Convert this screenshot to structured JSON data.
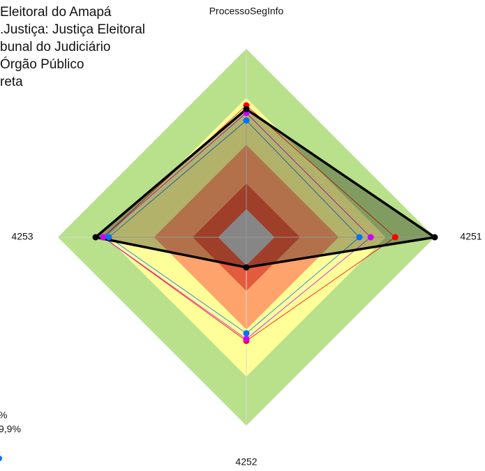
{
  "chart_data": {
    "type": "radar",
    "annotations": [
      "Eleitoral do Amapá",
      ".Justiça: Justiça Eleitoral",
      "bunal do Judiciário",
      " Órgão Público",
      "reta"
    ],
    "legend_fragments": [
      "%",
      "9,9%"
    ],
    "axes": [
      "ProcessoSegInfo",
      "4251",
      "4252",
      "4253"
    ],
    "rlim": [
      0,
      100
    ],
    "bands": [
      {
        "to": 100,
        "color": "#b9e08a"
      },
      {
        "to": 74,
        "color": "#ffff99"
      },
      {
        "to": 49,
        "color": "#ffa36c"
      },
      {
        "to": 28.5,
        "color": "#e45a3c"
      },
      {
        "to": 15,
        "color": "#c0c0c0"
      }
    ],
    "series": [
      {
        "color": "#ff0000",
        "values": [
          70,
          79,
          55,
          76
        ]
      },
      {
        "color": "#cc00ff",
        "values": [
          66,
          66,
          54,
          76
        ]
      },
      {
        "color": "#0070ff",
        "values": [
          62,
          60,
          51,
          73
        ]
      },
      {
        "color": "#000000",
        "values": [
          68,
          100,
          16,
          80
        ],
        "fill": true
      }
    ]
  }
}
